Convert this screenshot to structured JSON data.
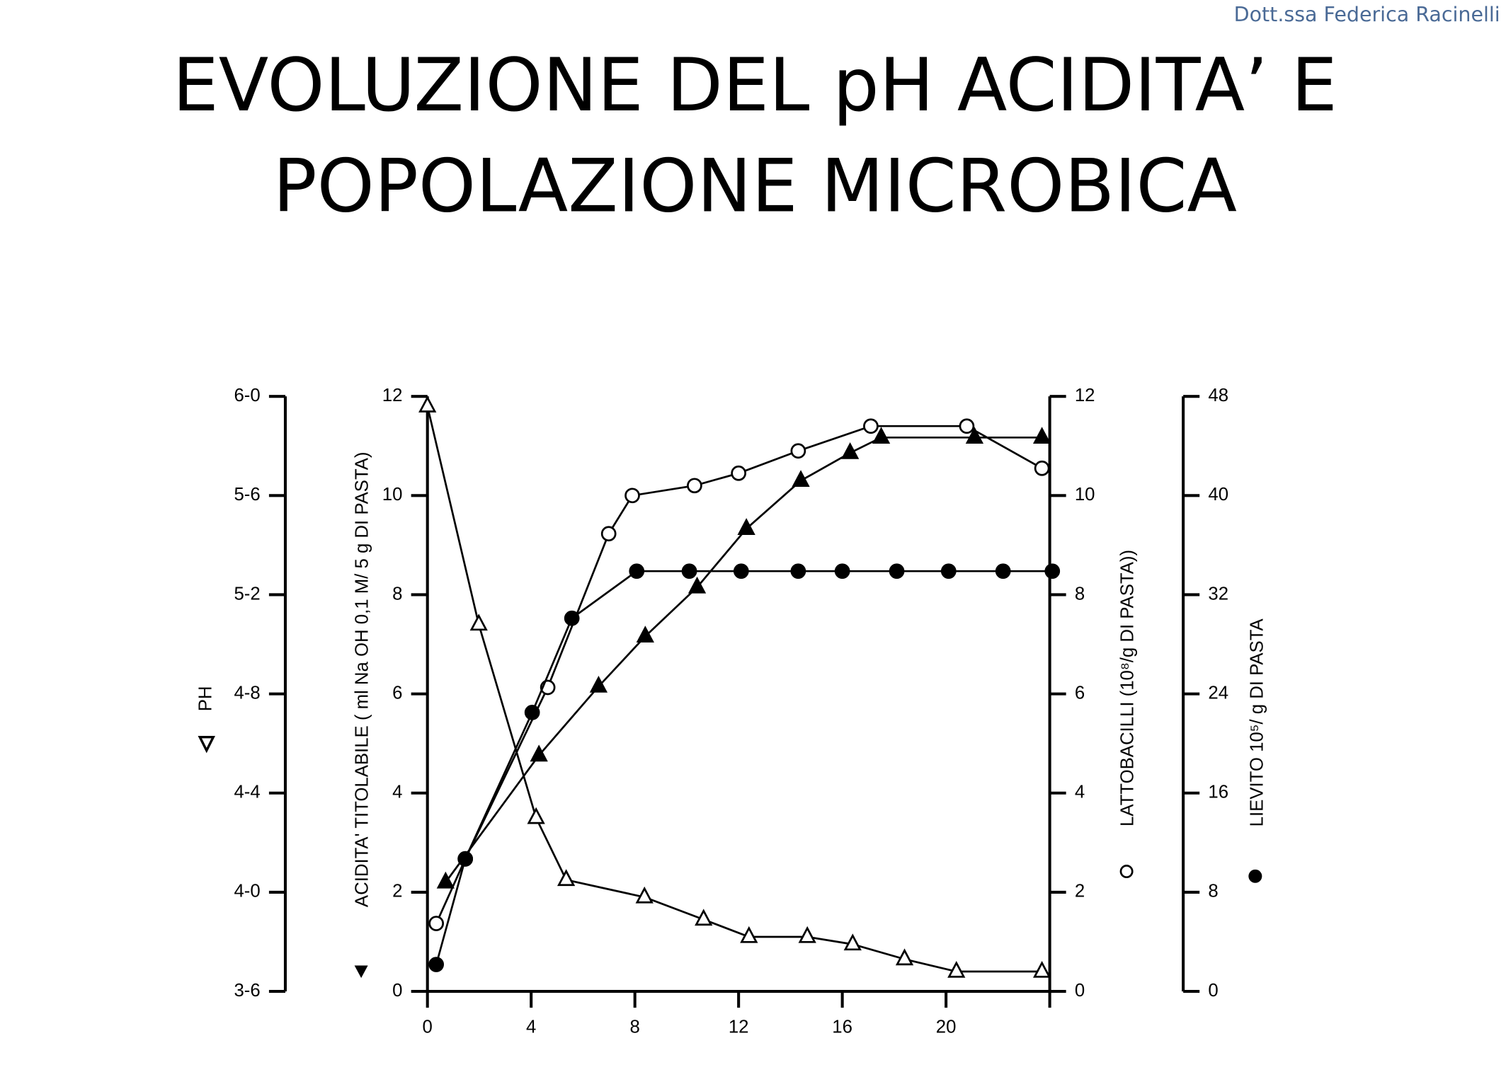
{
  "author": "Dott.ssa Federica Racinelli",
  "title_lines": [
    "EVOLUZIONE DEL pH ACIDITA’ E",
    "POPOLAZIONE MICROBICA"
  ],
  "chart_data": {
    "type": "line",
    "xlim": [
      0,
      24
    ],
    "xticks": [
      0,
      4,
      8,
      12,
      16,
      20
    ],
    "axes": [
      {
        "label": "PH",
        "lim": [
          3.6,
          6.0
        ],
        "ticks": [
          {
            "value": 3.6,
            "label": "3-6"
          },
          {
            "value": 4.0,
            "label": "4-0"
          },
          {
            "value": 4.4,
            "label": "4-4"
          },
          {
            "value": 4.8,
            "label": "4-8"
          },
          {
            "value": 5.2,
            "label": "5-2"
          },
          {
            "value": 5.6,
            "label": "5-6"
          },
          {
            "value": 6.0,
            "label": "6-0"
          }
        ]
      },
      {
        "label": "ACIDITA' TITOLABILE (  ml Na OH 0,1 M/ 5 g DI PASTA)",
        "lim": [
          0,
          12
        ],
        "ticks": [
          0,
          2,
          4,
          6,
          8,
          10,
          12
        ]
      },
      {
        "label": "LATTOBACILLI (10⁸/g DI PASTA))",
        "lim": [
          0,
          12
        ],
        "ticks": [
          0,
          2,
          4,
          6,
          8,
          10,
          12
        ]
      },
      {
        "label": "LIEVITO 10⁵/ g DI PASTA",
        "lim": [
          0,
          48
        ],
        "ticks": [
          0,
          8,
          16,
          24,
          32,
          40,
          48
        ]
      }
    ],
    "series": [
      {
        "axis": 0,
        "marker": "triangle-open",
        "color": "#000000",
        "x": [
          0,
          1.98,
          4.19,
          5.35,
          8.37,
          10.65,
          12.4,
          14.65,
          16.4,
          18.4,
          20.4,
          23.7
        ],
        "values": [
          5.96,
          5.08,
          4.3,
          4.05,
          3.98,
          3.89,
          3.82,
          3.82,
          3.79,
          3.73,
          3.68,
          3.68
        ]
      },
      {
        "axis": 1,
        "marker": "triangle-filled",
        "color": "#000000",
        "x": [
          0.7,
          4.3,
          6.6,
          8.4,
          10.4,
          12.3,
          14.4,
          16.3,
          17.5,
          21.1,
          23.7
        ],
        "values": [
          2.2,
          4.76,
          6.15,
          7.16,
          8.15,
          9.33,
          10.3,
          10.86,
          11.17,
          11.17,
          11.17
        ]
      },
      {
        "axis": 2,
        "marker": "circle-open",
        "color": "#000000",
        "x": [
          0.34,
          1.46,
          4.64,
          6.99,
          7.9,
          10.3,
          12.0,
          14.3,
          17.1,
          20.8,
          23.7
        ],
        "values": [
          1.37,
          2.67,
          6.13,
          9.23,
          10.0,
          10.2,
          10.45,
          10.9,
          11.4,
          11.4,
          10.55
        ]
      },
      {
        "axis": 3,
        "marker": "circle-filled",
        "color": "#000000",
        "x": [
          0.34,
          1.46,
          4.04,
          5.57,
          8.07,
          10.1,
          12.1,
          14.3,
          16.0,
          18.1,
          20.1,
          22.2,
          24.1
        ],
        "values": [
          2.17,
          10.7,
          22.5,
          30.1,
          33.9,
          33.9,
          33.9,
          33.9,
          33.9,
          33.9,
          33.9,
          33.9,
          33.9
        ]
      }
    ]
  }
}
